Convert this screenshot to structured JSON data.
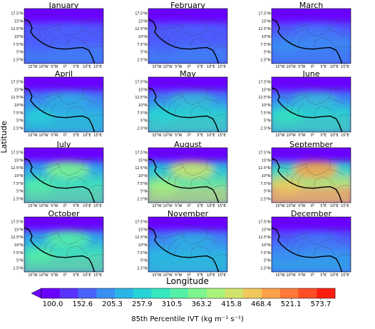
{
  "figure": {
    "y_axis_label": "Latitude",
    "x_axis_label": "Longitude",
    "lat_ticks": [
      "17.5°N",
      "15°N",
      "12.5°N",
      "10°N",
      "7.5°N",
      "5°N",
      "2.5°N"
    ],
    "lon_ticks": [
      "15°W",
      "10°W",
      "5°W",
      "0°",
      "5°E",
      "10°E",
      "15°E"
    ],
    "panels": [
      {
        "title": "January",
        "intensity": 0.15,
        "map_tags": [
          "ivt-bands"
        ]
      },
      {
        "title": "February",
        "intensity": 0.14,
        "map_tags": [
          "ivt-bands"
        ]
      },
      {
        "title": "March",
        "intensity": 0.18,
        "map_tags": [
          "ivt-bands"
        ]
      },
      {
        "title": "April",
        "intensity": 0.32,
        "map_tags": [
          "ivt-bands"
        ]
      },
      {
        "title": "May",
        "intensity": 0.38,
        "map_tags": [
          "ivt-bands"
        ]
      },
      {
        "title": "June",
        "intensity": 0.4,
        "map_tags": [
          "ivt-bands"
        ]
      },
      {
        "title": "July",
        "intensity": 0.5,
        "map_tags": [
          "ivt-bands"
        ]
      },
      {
        "title": "August",
        "intensity": 0.62,
        "map_tags": [
          "ivt-bands"
        ]
      },
      {
        "title": "September",
        "intensity": 0.78,
        "map_tags": [
          "ivt-bands"
        ]
      },
      {
        "title": "October",
        "intensity": 0.46,
        "map_tags": [
          "ivt-bands"
        ]
      },
      {
        "title": "November",
        "intensity": 0.3,
        "map_tags": [
          "ivt-bands"
        ]
      },
      {
        "title": "December",
        "intensity": 0.22,
        "map_tags": [
          "ivt-bands"
        ]
      }
    ],
    "colorbar": {
      "label": "85th Percentile IVT (kg m⁻¹ s⁻¹)",
      "tick_labels": [
        "100.0",
        "152.6",
        "205.3",
        "257.9",
        "310.5",
        "363.2",
        "415.8",
        "468.4",
        "521.1",
        "573.7"
      ],
      "colors": [
        "#6a00ff",
        "#5a32ff",
        "#4a63fb",
        "#3a8ff2",
        "#2bb5e6",
        "#26d3d6",
        "#35e6bf",
        "#55f0a7",
        "#7ff58e",
        "#a8f37c",
        "#d0e46b",
        "#f0c85b",
        "#fca24a",
        "#ff7a38",
        "#ff4e26",
        "#ff1f12"
      ]
    }
  }
}
